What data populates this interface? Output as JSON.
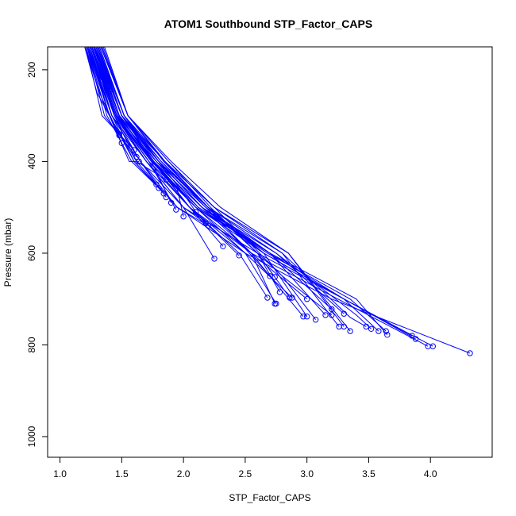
{
  "chart_data": {
    "type": "line",
    "title": "ATOM1 Southbound STP_Factor_CAPS",
    "xlabel": "STP_Factor_CAPS",
    "ylabel": "Pressure (mbar)",
    "xlim": [
      0.9,
      4.5
    ],
    "ylim": [
      1045,
      150
    ],
    "y_axis_reversed": true,
    "grid": false,
    "legend": "none",
    "x_ticks": [
      1.0,
      1.5,
      2.0,
      2.5,
      3.0,
      3.5,
      4.0
    ],
    "x_tick_labels": [
      "1.0",
      "1.5",
      "2.0",
      "2.5",
      "3.0",
      "3.5",
      "4.0"
    ],
    "y_ticks": [
      200,
      400,
      600,
      800,
      1000
    ],
    "y_tick_labels": [
      "200",
      "400",
      "600",
      "800",
      "1000"
    ],
    "line_color": "#0000ff",
    "marker": "open-circle-at-profile-bottom",
    "series": [
      {
        "points": [
          [
            1.22,
            150
          ],
          [
            1.4,
            300
          ],
          [
            1.62,
            400
          ],
          [
            1.95,
            500
          ],
          [
            2.5,
            600
          ],
          [
            3.2,
            700
          ],
          [
            4.32,
            818
          ]
        ]
      },
      {
        "points": [
          [
            1.24,
            150
          ],
          [
            1.42,
            300
          ],
          [
            1.65,
            400
          ],
          [
            2.0,
            500
          ],
          [
            2.6,
            600
          ],
          [
            3.3,
            700
          ],
          [
            4.02,
            803
          ]
        ]
      },
      {
        "points": [
          [
            1.26,
            150
          ],
          [
            1.45,
            300
          ],
          [
            1.7,
            400
          ],
          [
            2.05,
            500
          ],
          [
            2.55,
            600
          ],
          [
            3.25,
            700
          ],
          [
            3.98,
            803
          ]
        ]
      },
      {
        "points": [
          [
            1.28,
            150
          ],
          [
            1.48,
            300
          ],
          [
            1.75,
            400
          ],
          [
            2.1,
            500
          ],
          [
            2.65,
            600
          ],
          [
            3.3,
            700
          ],
          [
            3.88,
            787
          ]
        ]
      },
      {
        "points": [
          [
            1.3,
            150
          ],
          [
            1.5,
            300
          ],
          [
            1.8,
            400
          ],
          [
            2.2,
            500
          ],
          [
            2.65,
            600
          ],
          [
            3.3,
            700
          ],
          [
            3.85,
            780
          ]
        ]
      },
      {
        "points": [
          [
            1.25,
            150
          ],
          [
            1.45,
            300
          ],
          [
            1.72,
            400
          ],
          [
            2.1,
            500
          ],
          [
            2.7,
            600
          ],
          [
            3.4,
            700
          ],
          [
            3.65,
            778
          ]
        ]
      },
      {
        "points": [
          [
            1.27,
            150
          ],
          [
            1.46,
            300
          ],
          [
            1.74,
            400
          ],
          [
            2.12,
            500
          ],
          [
            2.68,
            600
          ],
          [
            3.35,
            700
          ],
          [
            3.64,
            770
          ]
        ]
      },
      {
        "points": [
          [
            1.29,
            150
          ],
          [
            1.5,
            300
          ],
          [
            1.78,
            400
          ],
          [
            2.18,
            500
          ],
          [
            2.7,
            600
          ],
          [
            3.3,
            700
          ],
          [
            3.58,
            770
          ]
        ]
      },
      {
        "points": [
          [
            1.31,
            150
          ],
          [
            1.52,
            300
          ],
          [
            1.8,
            400
          ],
          [
            2.2,
            500
          ],
          [
            2.75,
            600
          ],
          [
            3.4,
            735
          ],
          [
            3.52,
            765
          ]
        ]
      },
      {
        "points": [
          [
            1.33,
            150
          ],
          [
            1.55,
            300
          ],
          [
            1.85,
            400
          ],
          [
            2.25,
            500
          ],
          [
            2.8,
            600
          ],
          [
            3.35,
            740
          ],
          [
            3.48,
            760
          ]
        ]
      },
      {
        "points": [
          [
            1.35,
            150
          ],
          [
            1.55,
            300
          ],
          [
            1.9,
            400
          ],
          [
            2.3,
            500
          ],
          [
            2.85,
            600
          ],
          [
            3.35,
            770
          ]
        ]
      },
      {
        "points": [
          [
            1.3,
            150
          ],
          [
            1.5,
            300
          ],
          [
            1.85,
            400
          ],
          [
            2.25,
            500
          ],
          [
            2.85,
            600
          ],
          [
            3.3,
            760
          ]
        ]
      },
      {
        "points": [
          [
            1.32,
            150
          ],
          [
            1.52,
            300
          ],
          [
            1.85,
            400
          ],
          [
            2.2,
            500
          ],
          [
            2.8,
            600
          ],
          [
            3.26,
            760
          ]
        ]
      },
      {
        "points": [
          [
            1.28,
            150
          ],
          [
            1.48,
            300
          ],
          [
            1.8,
            400
          ],
          [
            2.15,
            500
          ],
          [
            2.75,
            600
          ],
          [
            3.3,
            732
          ]
        ]
      },
      {
        "points": [
          [
            1.26,
            150
          ],
          [
            1.46,
            300
          ],
          [
            1.78,
            400
          ],
          [
            2.12,
            500
          ],
          [
            2.7,
            600
          ],
          [
            3.2,
            722
          ]
        ]
      },
      {
        "points": [
          [
            1.3,
            150
          ],
          [
            1.5,
            300
          ],
          [
            1.8,
            400
          ],
          [
            2.2,
            500
          ],
          [
            2.8,
            650
          ],
          [
            3.2,
            735
          ]
        ]
      },
      {
        "points": [
          [
            1.27,
            150
          ],
          [
            1.47,
            300
          ],
          [
            1.76,
            400
          ],
          [
            2.15,
            500
          ],
          [
            2.7,
            600
          ],
          [
            3.15,
            735
          ]
        ]
      },
      {
        "points": [
          [
            1.34,
            150
          ],
          [
            1.55,
            300
          ],
          [
            1.88,
            400
          ],
          [
            2.25,
            500
          ],
          [
            2.8,
            650
          ],
          [
            3.07,
            745
          ]
        ]
      },
      {
        "points": [
          [
            1.29,
            150
          ],
          [
            1.48,
            300
          ],
          [
            1.8,
            400
          ],
          [
            2.15,
            500
          ],
          [
            2.65,
            600
          ],
          [
            3.0,
            738
          ]
        ]
      },
      {
        "points": [
          [
            1.31,
            150
          ],
          [
            1.5,
            300
          ],
          [
            1.82,
            400
          ],
          [
            2.2,
            500
          ],
          [
            2.7,
            650
          ],
          [
            2.97,
            738
          ]
        ]
      },
      {
        "points": [
          [
            1.25,
            150
          ],
          [
            1.45,
            300
          ],
          [
            1.74,
            400
          ],
          [
            2.1,
            500
          ],
          [
            2.55,
            600
          ],
          [
            3.0,
            700
          ]
        ]
      },
      {
        "points": [
          [
            1.23,
            150
          ],
          [
            1.42,
            300
          ],
          [
            1.7,
            400
          ],
          [
            2.05,
            500
          ],
          [
            2.5,
            600
          ],
          [
            2.88,
            697
          ]
        ]
      },
      {
        "points": [
          [
            1.36,
            150
          ],
          [
            1.55,
            300
          ],
          [
            1.88,
            400
          ],
          [
            2.22,
            500
          ],
          [
            2.6,
            600
          ],
          [
            2.86,
            697
          ]
        ]
      },
      {
        "points": [
          [
            1.33,
            150
          ],
          [
            1.55,
            300
          ],
          [
            1.85,
            400
          ],
          [
            2.2,
            500
          ],
          [
            2.6,
            600
          ],
          [
            2.78,
            685
          ]
        ]
      },
      {
        "points": [
          [
            1.3,
            150
          ],
          [
            1.52,
            300
          ],
          [
            1.8,
            400
          ],
          [
            2.15,
            500
          ],
          [
            2.55,
            600
          ],
          [
            2.74,
            710
          ]
        ]
      },
      {
        "points": [
          [
            1.28,
            150
          ],
          [
            1.5,
            300
          ],
          [
            1.76,
            400
          ],
          [
            2.1,
            500
          ],
          [
            2.5,
            600
          ],
          [
            2.75,
            710
          ]
        ]
      },
      {
        "points": [
          [
            1.26,
            150
          ],
          [
            1.45,
            300
          ],
          [
            1.72,
            400
          ],
          [
            2.05,
            500
          ],
          [
            2.45,
            600
          ],
          [
            2.68,
            697
          ]
        ]
      },
      {
        "points": [
          [
            1.32,
            150
          ],
          [
            1.52,
            300
          ],
          [
            1.82,
            400
          ],
          [
            2.18,
            500
          ],
          [
            2.55,
            600
          ],
          [
            2.7,
            650
          ]
        ]
      },
      {
        "points": [
          [
            1.34,
            150
          ],
          [
            1.55,
            300
          ],
          [
            1.84,
            400
          ],
          [
            2.2,
            500
          ],
          [
            2.6,
            600
          ],
          [
            2.74,
            652
          ]
        ]
      },
      {
        "points": [
          [
            1.24,
            150
          ],
          [
            1.44,
            300
          ],
          [
            1.7,
            400
          ],
          [
            2.0,
            500
          ],
          [
            2.25,
            612
          ]
        ]
      },
      {
        "points": [
          [
            1.28,
            150
          ],
          [
            1.48,
            300
          ],
          [
            1.75,
            400
          ],
          [
            2.05,
            500
          ],
          [
            2.32,
            585
          ]
        ]
      },
      {
        "points": [
          [
            1.3,
            150
          ],
          [
            1.5,
            300
          ],
          [
            1.76,
            400
          ],
          [
            2.05,
            500
          ],
          [
            2.45,
            605
          ]
        ]
      },
      {
        "points": [
          [
            1.22,
            150
          ],
          [
            1.42,
            300
          ],
          [
            1.65,
            400
          ],
          [
            1.95,
            500
          ],
          [
            2.2,
            540
          ]
        ]
      },
      {
        "points": [
          [
            1.25,
            150
          ],
          [
            1.45,
            300
          ],
          [
            1.7,
            400
          ],
          [
            2.0,
            500
          ],
          [
            2.18,
            535
          ]
        ]
      },
      {
        "points": [
          [
            1.3,
            150
          ],
          [
            1.52,
            300
          ],
          [
            1.8,
            400
          ],
          [
            2.0,
            470
          ],
          [
            2.1,
            510
          ]
        ]
      },
      {
        "points": [
          [
            1.28,
            150
          ],
          [
            1.5,
            300
          ],
          [
            1.76,
            400
          ],
          [
            1.95,
            460
          ],
          [
            2.0,
            520
          ]
        ]
      },
      {
        "points": [
          [
            1.26,
            150
          ],
          [
            1.46,
            300
          ],
          [
            1.72,
            400
          ],
          [
            1.94,
            505
          ]
        ]
      },
      {
        "points": [
          [
            1.27,
            150
          ],
          [
            1.48,
            300
          ],
          [
            1.74,
            400
          ],
          [
            1.9,
            490
          ]
        ]
      },
      {
        "points": [
          [
            1.25,
            150
          ],
          [
            1.44,
            300
          ],
          [
            1.65,
            400
          ],
          [
            1.86,
            478
          ]
        ]
      },
      {
        "points": [
          [
            1.23,
            150
          ],
          [
            1.4,
            300
          ],
          [
            1.6,
            400
          ],
          [
            1.84,
            470
          ]
        ]
      },
      {
        "points": [
          [
            1.22,
            150
          ],
          [
            1.38,
            300
          ],
          [
            1.58,
            400
          ],
          [
            1.8,
            458
          ]
        ]
      },
      {
        "points": [
          [
            1.26,
            150
          ],
          [
            1.42,
            300
          ],
          [
            1.6,
            400
          ],
          [
            1.78,
            450
          ]
        ]
      },
      {
        "points": [
          [
            1.28,
            150
          ],
          [
            1.44,
            300
          ],
          [
            1.62,
            400
          ],
          [
            1.86,
            440
          ]
        ]
      },
      {
        "points": [
          [
            1.24,
            150
          ],
          [
            1.4,
            300
          ],
          [
            1.56,
            400
          ],
          [
            1.64,
            400
          ]
        ]
      },
      {
        "points": [
          [
            1.22,
            150
          ],
          [
            1.36,
            300
          ],
          [
            1.62,
            390
          ]
        ]
      },
      {
        "points": [
          [
            1.21,
            150
          ],
          [
            1.34,
            300
          ],
          [
            1.6,
            375
          ]
        ]
      },
      {
        "points": [
          [
            1.2,
            150
          ],
          [
            1.32,
            250
          ],
          [
            1.5,
            360
          ]
        ]
      },
      {
        "points": [
          [
            1.2,
            150
          ],
          [
            1.3,
            250
          ],
          [
            1.48,
            340
          ]
        ]
      },
      {
        "points": [
          [
            1.21,
            150
          ],
          [
            1.32,
            250
          ],
          [
            1.48,
            343
          ]
        ]
      },
      {
        "points": [
          [
            1.22,
            150
          ],
          [
            1.33,
            220
          ],
          [
            1.4,
            245
          ]
        ]
      }
    ]
  }
}
